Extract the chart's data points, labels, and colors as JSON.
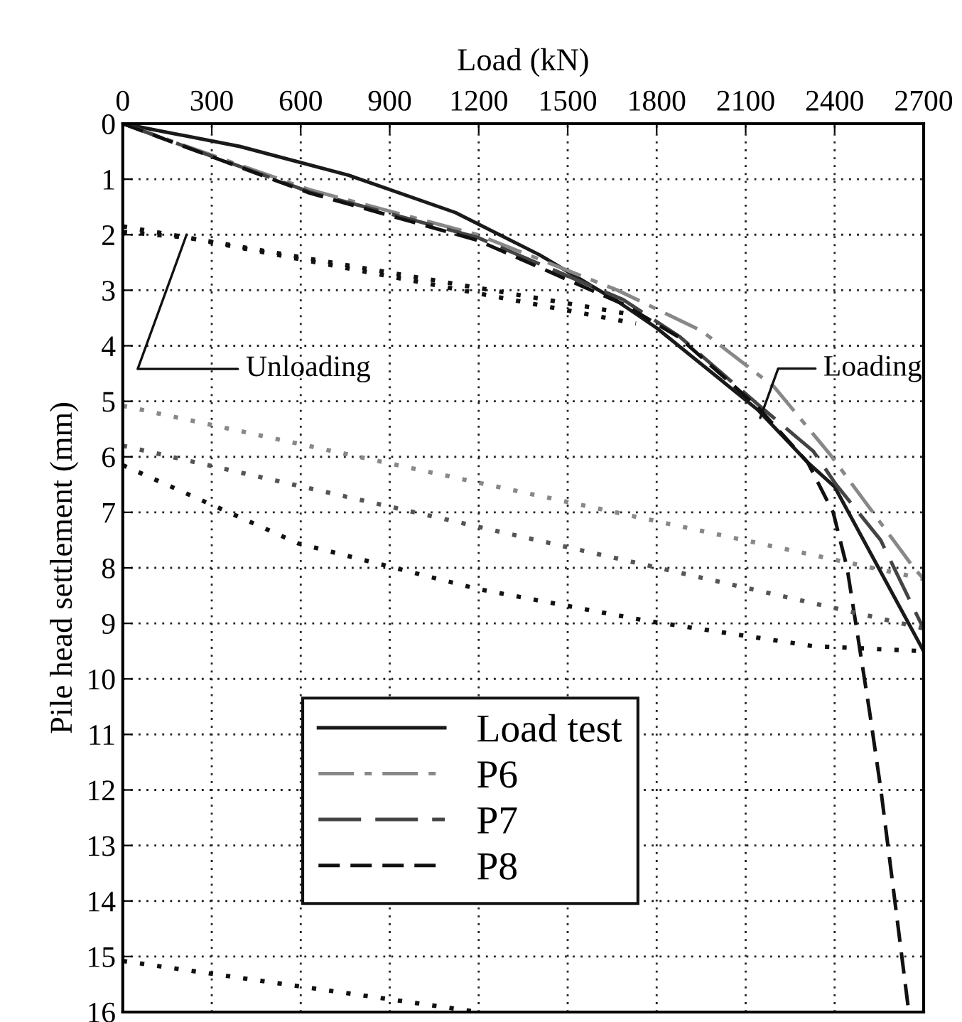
{
  "chart_data": {
    "type": "line",
    "xlabel": "Load (kN)",
    "ylabel": "Pile head settlement (mm)",
    "xlim": [
      0,
      2700
    ],
    "xticks": [
      0,
      300,
      600,
      900,
      1200,
      1500,
      1800,
      2100,
      2400,
      2700
    ],
    "ylim": [
      16,
      0
    ],
    "yticks": [
      0,
      1,
      2,
      3,
      4,
      5,
      6,
      7,
      8,
      9,
      10,
      11,
      12,
      13,
      14,
      15,
      16
    ],
    "grid": true,
    "legend": "bottom left",
    "series": [
      {
        "name": "Load test",
        "color": "#1a1a1a",
        "line_style": "solid",
        "x": [
          0,
          394,
          762,
          1121,
          1404,
          1668,
          1800,
          2140,
          2309,
          2400,
          2700
        ],
        "values": [
          0,
          0.41,
          0.93,
          1.6,
          2.36,
          3.2,
          3.68,
          5.15,
          6.1,
          6.54,
          9.5
        ]
      },
      {
        "name": "P6",
        "color": "#888888",
        "line_style": "dashdot",
        "x": [
          0,
          630,
          1196,
          1668,
          1951,
          2196,
          2385,
          2667,
          2700
        ],
        "values": [
          0,
          1.19,
          2.0,
          3.0,
          3.73,
          4.74,
          5.96,
          8.0,
          8.2
        ]
      },
      {
        "name": "P7",
        "color": "#444444",
        "line_style": "longdash",
        "x": [
          0,
          630,
          1196,
          1687,
          1876,
          2140,
          2328,
          2405,
          2555,
          2700
        ],
        "values": [
          0,
          1.23,
          2.05,
          3.17,
          3.83,
          5.05,
          5.9,
          6.5,
          7.5,
          9.1
        ]
      },
      {
        "name": "P8",
        "color": "#111111",
        "line_style": "dashed",
        "x": [
          0,
          630,
          1196,
          1687,
          1876,
          2140,
          2309,
          2395,
          2442,
          2518,
          2556,
          2650
        ],
        "values": [
          0,
          1.25,
          2.1,
          3.25,
          3.85,
          5.1,
          6.1,
          7.0,
          8.0,
          10.6,
          12.0,
          16.0
        ]
      },
      {
        "color": "#111111",
        "line_style": "dotted",
        "x": [
          0,
          1730
        ],
        "values": [
          1.85,
          3.45
        ]
      },
      {
        "color": "#111111",
        "line_style": "dotted",
        "x": [
          0,
          215,
          1730
        ],
        "values": [
          1.95,
          2.05,
          3.6
        ]
      },
      {
        "color": "#888888",
        "line_style": "dotted",
        "x": [
          0,
          2700
        ],
        "values": [
          5.08,
          8.2
        ]
      },
      {
        "color": "#555555",
        "line_style": "dotted",
        "x": [
          0,
          2700
        ],
        "values": [
          5.8,
          9.09
        ]
      },
      {
        "color": "#111111",
        "line_style": "dotted",
        "x": [
          0,
          290,
          592,
          1196,
          1762,
          2327,
          2700
        ],
        "values": [
          6.15,
          6.84,
          7.56,
          8.38,
          8.95,
          9.41,
          9.5
        ]
      },
      {
        "color": "#111111",
        "line_style": "dotted",
        "x": [
          0,
          1200
        ],
        "values": [
          15.08,
          16.0
        ]
      }
    ],
    "annotations": [
      {
        "text": "Unloading",
        "x": 215,
        "y": 2.0
      },
      {
        "text": "Loading",
        "x": 2149,
        "y": 5.3
      }
    ]
  }
}
